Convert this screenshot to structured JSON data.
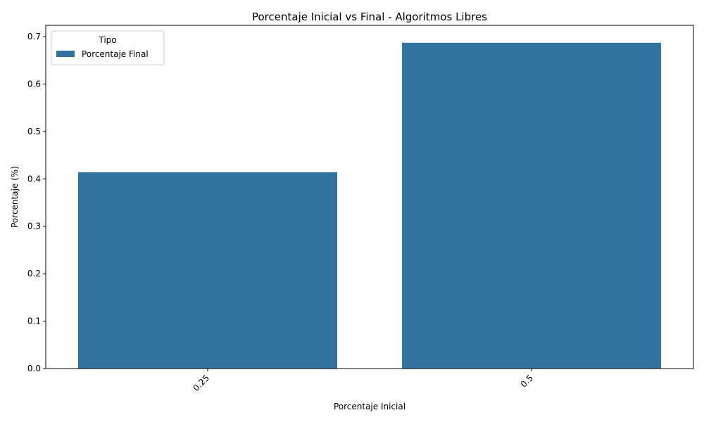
{
  "chart_data": {
    "type": "bar",
    "title": "Porcentaje Inicial vs Final - Algoritmos Libres",
    "xlabel": "Porcentaje Inicial",
    "ylabel": "Porcentaje (%)",
    "categories": [
      "0.25",
      "0.5"
    ],
    "series": [
      {
        "name": "Porcentaje Final",
        "values": [
          0.414,
          0.687
        ],
        "color": "#3274a1"
      }
    ],
    "ylim": [
      0,
      0.7238
    ],
    "yticks": [
      "0.0",
      "0.1",
      "0.2",
      "0.3",
      "0.4",
      "0.5",
      "0.6",
      "0.7"
    ],
    "grid": false,
    "legend": {
      "title": "Tipo",
      "placement": "top-left"
    }
  }
}
